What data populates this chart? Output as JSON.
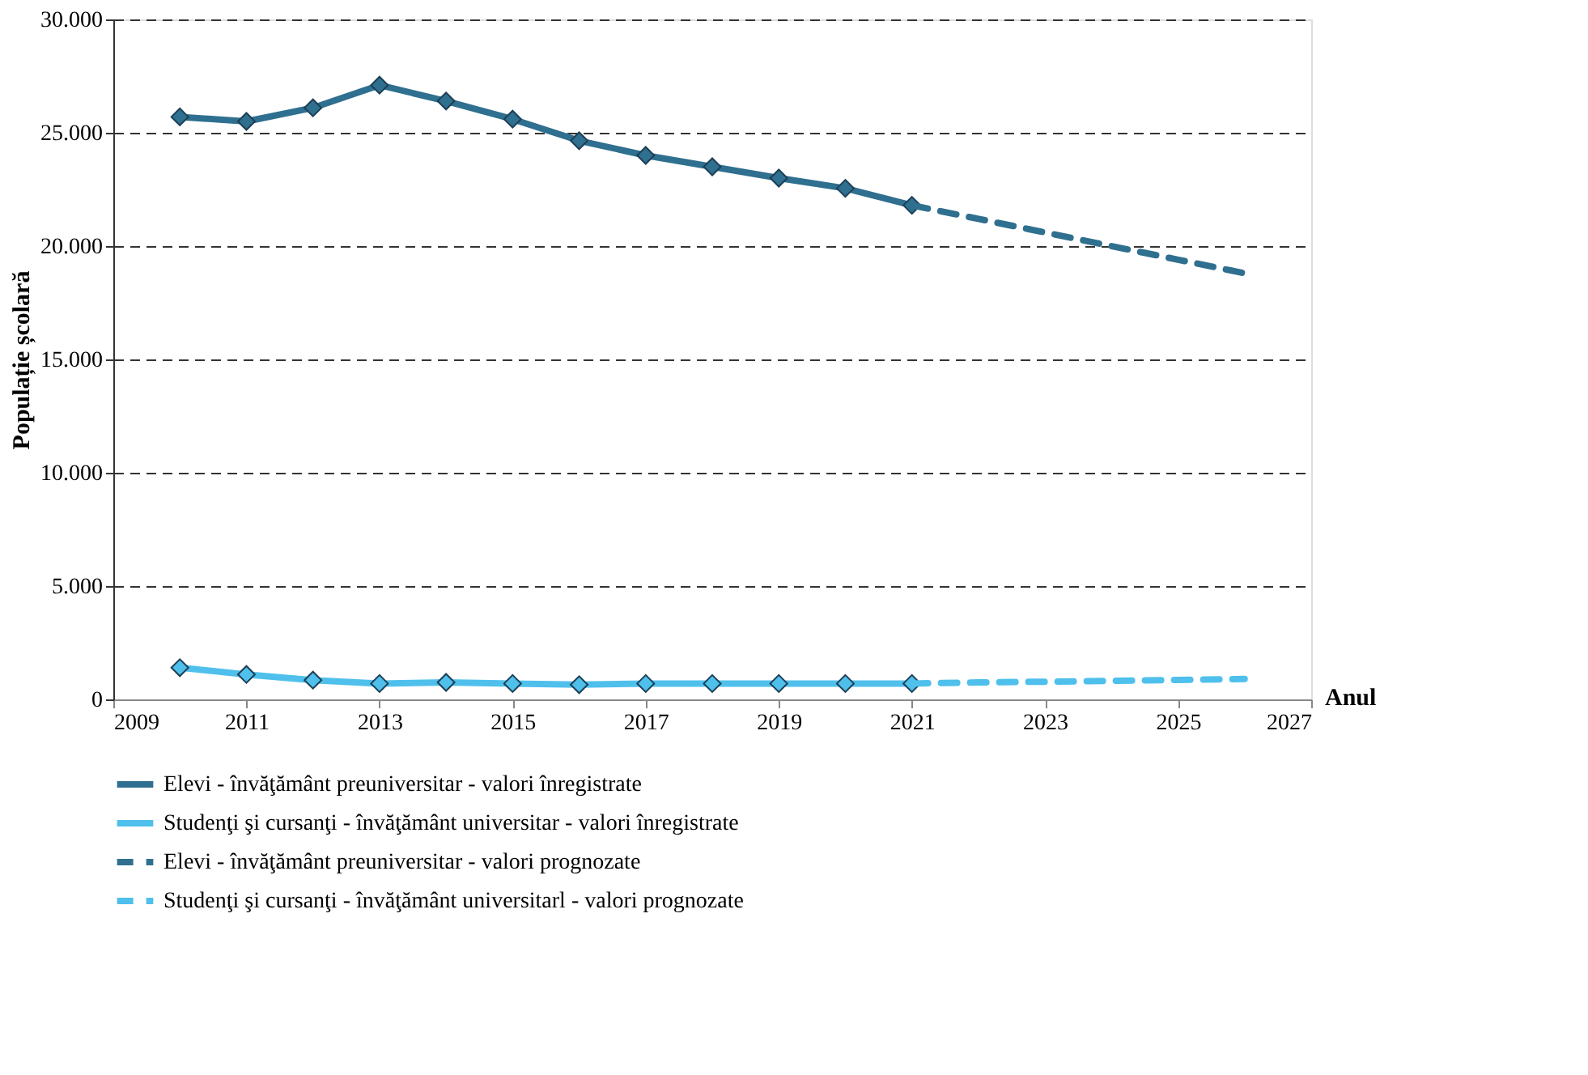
{
  "chart_data": {
    "type": "line",
    "xlabel": "Anul",
    "ylabel": "Populație școlară",
    "xlim": [
      2009,
      2027
    ],
    "xticks": [
      2009,
      2011,
      2013,
      2015,
      2017,
      2019,
      2021,
      2023,
      2025,
      2027
    ],
    "ylim": [
      0,
      30000
    ],
    "yticks": [
      0,
      {
        "value": 5000,
        "label": "5.000"
      },
      {
        "value": 10000,
        "label": "10.000"
      },
      {
        "value": 15000,
        "label": "15.000"
      },
      {
        "value": 20000,
        "label": "20.000"
      },
      {
        "value": 25000,
        "label": "25.000"
      },
      {
        "value": 30000,
        "label": "30.000"
      }
    ],
    "grid": "y",
    "legend": "bottom",
    "series": [
      {
        "name": "Elevi - învăţământ preuniversitar - valori înregistrate",
        "color": "#2f6f8f",
        "marker": "diamond",
        "line_style": "solid",
        "x": [
          2010,
          2011,
          2012,
          2013,
          2014,
          2015,
          2016,
          2017,
          2018,
          2019,
          2020,
          2021
        ],
        "values": [
          25700,
          25500,
          26100,
          27100,
          26400,
          25600,
          24650,
          24000,
          23500,
          23000,
          22550,
          21800
        ]
      },
      {
        "name": "Studenţi şi cursanţi - învăţământ universitar - valori înregistrate",
        "color": "#4fc0ec",
        "marker": "diamond",
        "line_style": "solid",
        "x": [
          2010,
          2011,
          2012,
          2013,
          2014,
          2015,
          2016,
          2017,
          2018,
          2019,
          2020,
          2021
        ],
        "values": [
          1400,
          1100,
          850,
          700,
          750,
          700,
          650,
          700,
          700,
          700,
          700,
          700
        ]
      },
      {
        "name": "Elevi - învăţământ preuniversitar - valori prognozate",
        "color": "#2f6f8f",
        "marker": "none",
        "line_style": "dashed",
        "x": [
          2021,
          2022,
          2023,
          2024,
          2025,
          2026
        ],
        "values": [
          21800,
          21200,
          20600,
          20000,
          19400,
          18800
        ]
      },
      {
        "name": "Studenţi şi cursanţi - învăţământ universitarl - valori prognozate",
        "color": "#4fc0ec",
        "marker": "none",
        "line_style": "dashed",
        "x": [
          2021,
          2022,
          2023,
          2024,
          2025,
          2026
        ],
        "values": [
          700,
          750,
          780,
          820,
          860,
          900
        ]
      }
    ]
  }
}
